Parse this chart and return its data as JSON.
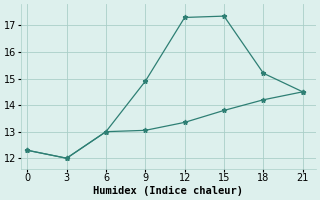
{
  "line1_x": [
    0,
    3,
    6,
    9,
    12,
    15,
    18,
    21
  ],
  "line1_y": [
    12.3,
    12.0,
    13.0,
    14.9,
    17.3,
    17.35,
    15.2,
    14.5
  ],
  "line2_x": [
    0,
    3,
    6,
    9,
    12,
    15,
    18,
    21
  ],
  "line2_y": [
    12.3,
    12.0,
    13.0,
    13.05,
    13.35,
    13.8,
    14.2,
    14.5
  ],
  "line_color": "#2e7f74",
  "bg_color": "#ddf0ed",
  "grid_color": "#aacfc8",
  "xlabel": "Humidex (Indice chaleur)",
  "xlim": [
    -0.5,
    22
  ],
  "ylim": [
    11.6,
    17.8
  ],
  "xticks": [
    0,
    3,
    6,
    9,
    12,
    15,
    18,
    21
  ],
  "yticks": [
    12,
    13,
    14,
    15,
    16,
    17
  ],
  "xlabel_fontsize": 7.5,
  "tick_fontsize": 7
}
